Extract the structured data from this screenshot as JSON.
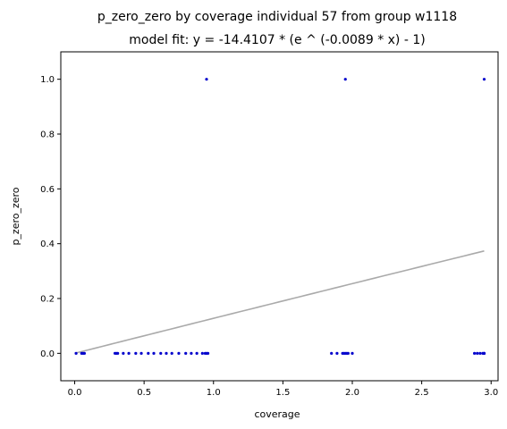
{
  "chart_data": {
    "type": "scatter",
    "title": "p_zero_zero by coverage individual 57 from group w1118",
    "subtitle": "model fit: y = -14.4107 * (e ^ (-0.0089 * x) - 1)",
    "xlabel": "coverage",
    "ylabel": "p_zero_zero",
    "xlim": [
      -0.1,
      3.05
    ],
    "ylim": [
      -0.1,
      1.1
    ],
    "x_ticks": [
      0.0,
      0.5,
      1.0,
      1.5,
      2.0,
      2.5,
      3.0
    ],
    "x_tick_labels": [
      "0.0",
      "0.5",
      "1.0",
      "1.5",
      "2.0",
      "2.5",
      "3.0"
    ],
    "y_ticks": [
      0.0,
      0.2,
      0.4,
      0.6,
      0.8,
      1.0
    ],
    "y_tick_labels": [
      "0.0",
      "0.2",
      "0.4",
      "0.6",
      "0.8",
      "1.0"
    ],
    "grid": false,
    "point_color": "#0000cc",
    "fit_color": "#aaaaaa",
    "points": {
      "x": [
        0.01,
        0.05,
        0.06,
        0.07,
        0.29,
        0.3,
        0.31,
        0.35,
        0.39,
        0.44,
        0.48,
        0.53,
        0.57,
        0.62,
        0.66,
        0.7,
        0.75,
        0.8,
        0.84,
        0.88,
        0.92,
        0.94,
        0.95,
        0.96,
        0.95,
        1.85,
        1.89,
        1.93,
        1.94,
        1.95,
        1.96,
        1.97,
        2.0,
        2.88,
        2.9,
        2.92,
        2.94,
        2.95,
        2.95,
        1.95,
        2.95
      ],
      "y": [
        0,
        0,
        0,
        0,
        0,
        0,
        0,
        0,
        0,
        0,
        0,
        0,
        0,
        0,
        0,
        0,
        0,
        0,
        0,
        0,
        0,
        0,
        0,
        0,
        1.0,
        0,
        0,
        0,
        0,
        0,
        0,
        0,
        0,
        0,
        0,
        0,
        0,
        0,
        0,
        1.0,
        1.0
      ]
    },
    "fit": {
      "a": -14.4107,
      "b": -0.0089,
      "x_range": [
        0.0,
        2.95
      ]
    }
  }
}
